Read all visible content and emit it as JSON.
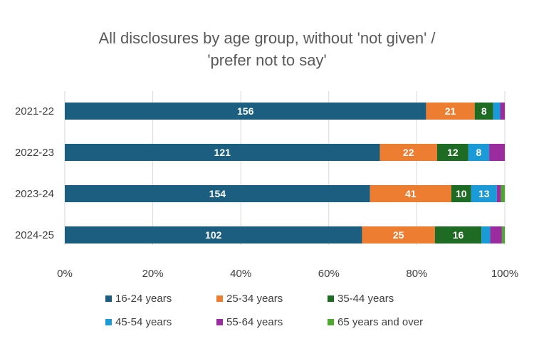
{
  "title_lines": [
    "All disclosures by age group, without 'not given' /",
    "'prefer not to say'"
  ],
  "chart_data": {
    "type": "bar",
    "orientation": "horizontal",
    "stacked": "percent",
    "title": "All disclosures by age group, without 'not given' / 'prefer not to say'",
    "categories": [
      "2021-22",
      "2022-23",
      "2023-24",
      "2024-25"
    ],
    "xlim": [
      0,
      100
    ],
    "x_ticks": [
      "0%",
      "20%",
      "40%",
      "60%",
      "80%",
      "100%"
    ],
    "grid": "vertical",
    "legend_position": "bottom",
    "series": [
      {
        "name": "16-24 years",
        "color": "#1b5e7f",
        "values": [
          156,
          121,
          154,
          102
        ]
      },
      {
        "name": "25-34 years",
        "color": "#ed7d31",
        "values": [
          21,
          22,
          41,
          25
        ]
      },
      {
        "name": "35-44 years",
        "color": "#1e6b23",
        "values": [
          8,
          12,
          10,
          16
        ]
      },
      {
        "name": "45-54 years",
        "color": "#1a9bd7",
        "values": [
          3,
          8,
          13,
          3
        ]
      },
      {
        "name": "55-64 years",
        "color": "#9a2ca0",
        "values": [
          2,
          6,
          2,
          4
        ]
      },
      {
        "name": "65 years and over",
        "color": "#4ea72e",
        "values": [
          0,
          0,
          2,
          1
        ]
      }
    ],
    "data_labels": [
      [
        "156",
        "21",
        "8",
        "",
        "",
        ""
      ],
      [
        "121",
        "22",
        "12",
        "8",
        "",
        ""
      ],
      [
        "154",
        "41",
        "10",
        "13",
        "",
        ""
      ],
      [
        "102",
        "25",
        "16",
        "",
        "",
        ""
      ]
    ]
  }
}
